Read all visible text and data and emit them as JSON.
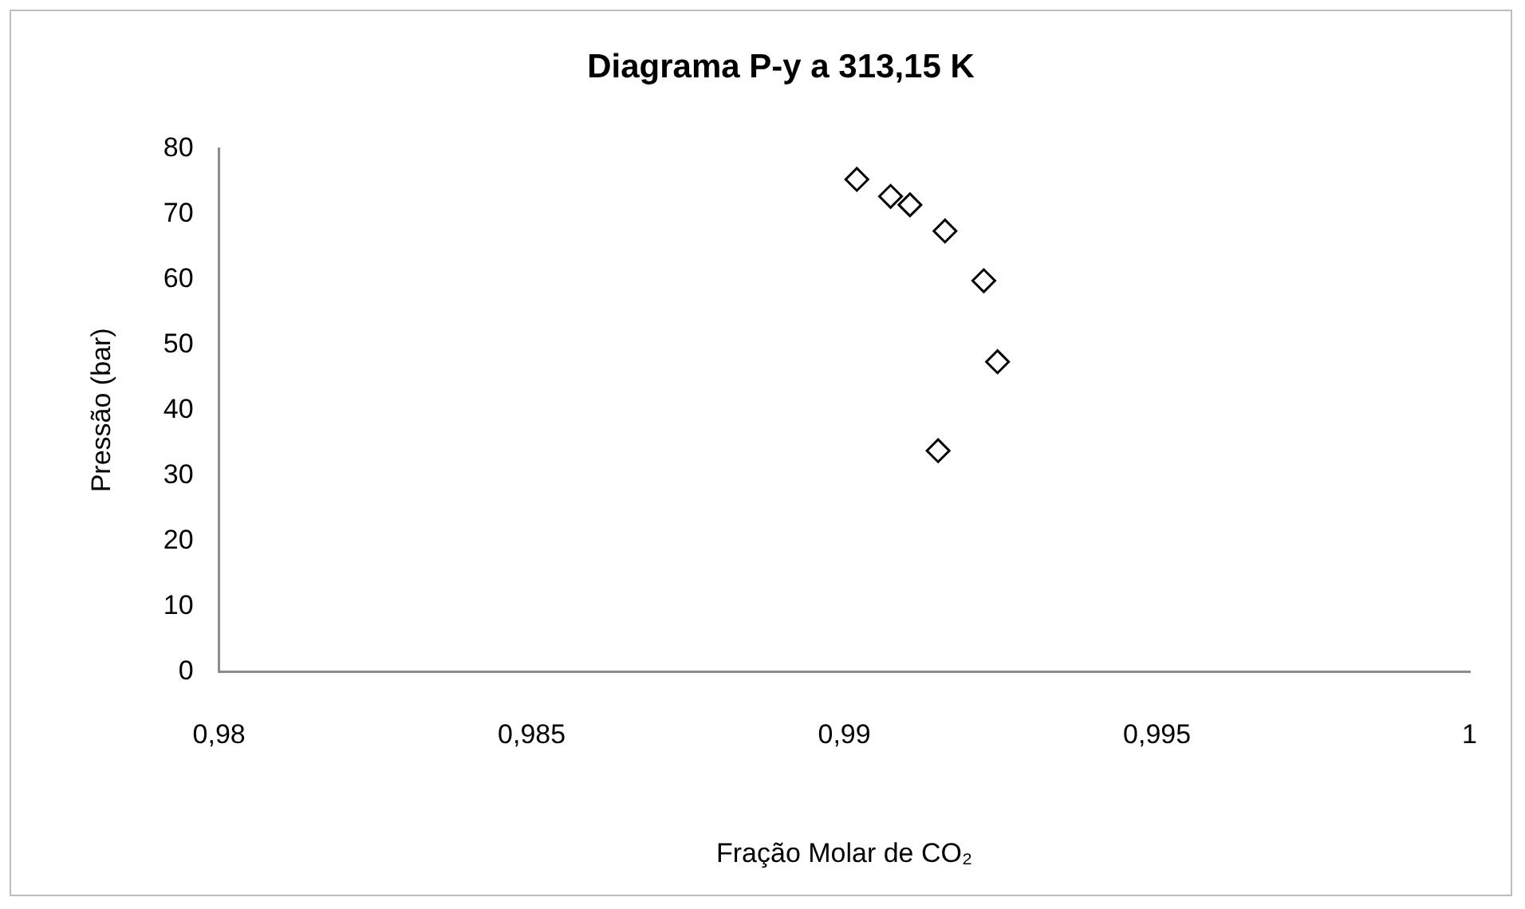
{
  "chart_data": {
    "type": "scatter",
    "title": "Diagrama P-y a 313,15 K",
    "xlabel": "Fração Molar de CO₂",
    "ylabel": "Pressão (bar)",
    "series": [
      {
        "color": "#000000",
        "x": [
          0.9902,
          0.99074,
          0.99105,
          0.99161,
          0.99223,
          0.99245,
          0.9915
        ],
        "values": [
          75.3,
          72.7,
          71.4,
          67.4,
          59.8,
          47.4,
          33.8
        ]
      }
    ],
    "xlim": [
      0.98,
      1
    ],
    "xticks": [
      {
        "value": 0.98,
        "label": "0,98"
      },
      {
        "value": 0.985,
        "label": "0,985"
      },
      {
        "value": 0.99,
        "label": "0,99"
      },
      {
        "value": 0.995,
        "label": "0,995"
      },
      {
        "value": 1,
        "label": "1"
      }
    ],
    "ylim": [
      0,
      80
    ],
    "yticks": [
      0,
      10,
      20,
      30,
      40,
      50,
      60,
      70,
      80
    ],
    "grid": false,
    "legend": false,
    "marker": "diamond"
  }
}
